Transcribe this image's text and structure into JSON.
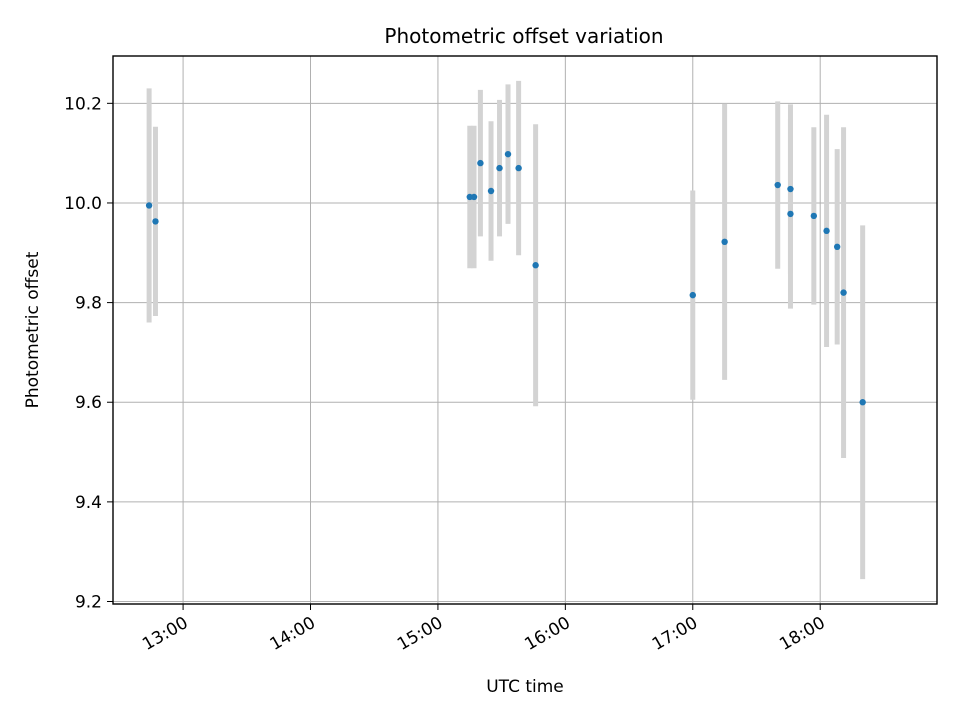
{
  "chart_data": {
    "type": "scatter",
    "title": "Photometric offset variation",
    "xlabel": "UTC time",
    "ylabel": "Photometric offset",
    "x_axis_type": "time",
    "xlim": [
      "12:27",
      "18:55"
    ],
    "ylim": [
      9.195,
      10.295
    ],
    "x_ticks": [
      "13:00",
      "14:00",
      "15:00",
      "16:00",
      "17:00",
      "18:00"
    ],
    "y_ticks": [
      9.2,
      9.4,
      9.6,
      9.8,
      10.0,
      10.2
    ],
    "grid": true,
    "legend": "none",
    "point_color": "#1f77b4",
    "errorbar_color": "#d3d3d3",
    "series": [
      {
        "points": [
          {
            "x": "12:44",
            "y": 9.995,
            "yerr": 0.235
          },
          {
            "x": "12:47",
            "y": 9.963,
            "yerr": 0.19
          },
          {
            "x": "15:15",
            "y": 10.012,
            "yerr": 0.143
          },
          {
            "x": "15:17",
            "y": 10.012,
            "yerr": 0.143
          },
          {
            "x": "15:20",
            "y": 10.08,
            "yerr": 0.147
          },
          {
            "x": "15:25",
            "y": 10.024,
            "yerr": 0.14
          },
          {
            "x": "15:29",
            "y": 10.07,
            "yerr": 0.137
          },
          {
            "x": "15:33",
            "y": 10.098,
            "yerr": 0.14
          },
          {
            "x": "15:38",
            "y": 10.07,
            "yerr": 0.175
          },
          {
            "x": "15:46",
            "y": 9.875,
            "yerr": 0.283
          },
          {
            "x": "17:00",
            "y": 9.815,
            "yerr": 0.21
          },
          {
            "x": "17:15",
            "y": 9.922,
            "yerr": 0.277
          },
          {
            "x": "17:40",
            "y": 10.036,
            "yerr": 0.168
          },
          {
            "x": "17:46",
            "y": 10.028,
            "yerr": 0.17
          },
          {
            "x": "17:46",
            "y": 9.978,
            "yerr": 0.19
          },
          {
            "x": "17:57",
            "y": 9.974,
            "yerr": 0.178
          },
          {
            "x": "18:03",
            "y": 9.944,
            "yerr": 0.233
          },
          {
            "x": "18:08",
            "y": 9.912,
            "yerr": 0.196
          },
          {
            "x": "18:11",
            "y": 9.82,
            "yerr": 0.332
          },
          {
            "x": "18:20",
            "y": 9.6,
            "yerr": 0.355
          }
        ]
      }
    ]
  }
}
